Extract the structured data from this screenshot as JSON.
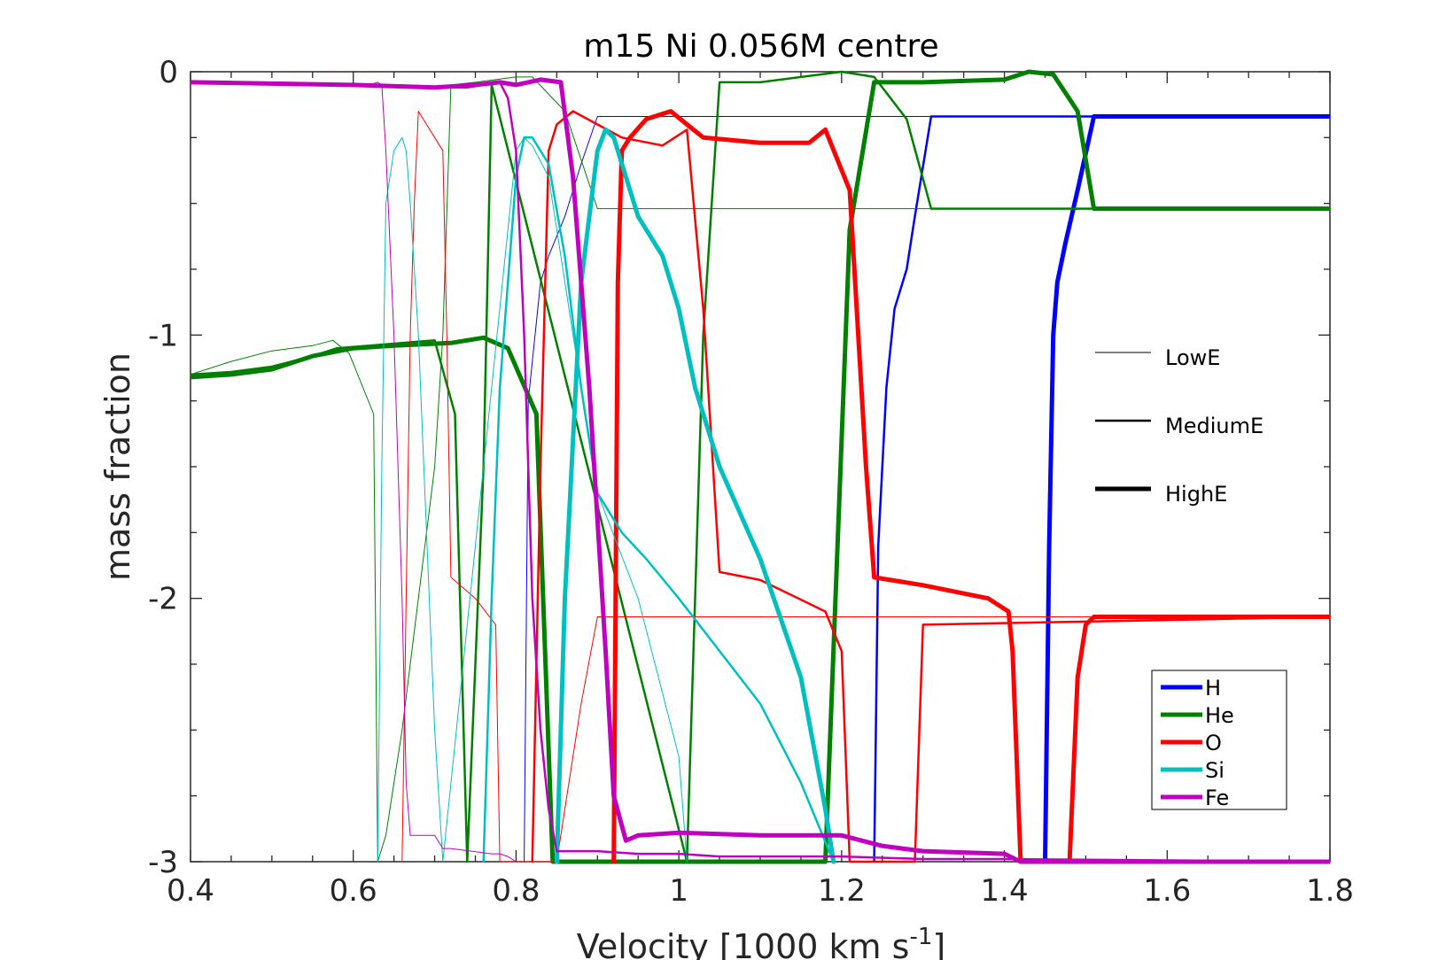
{
  "chart_data": {
    "type": "line",
    "title": "m15 Ni 0.056M centre",
    "xlabel_main": "Velocity [1000 km s",
    "xlabel_sup": "-1",
    "xlabel_end": "]",
    "ylabel": "mass fraction",
    "xlim": [
      0.4,
      1.8
    ],
    "ylim": [
      -3,
      0
    ],
    "xticks": [
      0.4,
      0.6,
      0.8,
      1,
      1.2,
      1.4,
      1.6,
      1.8
    ],
    "xtick_labels": [
      "0.4",
      "0.6",
      "0.8",
      "1",
      "1.2",
      "1.4",
      "1.6",
      "1.8"
    ],
    "yticks": [
      0,
      -1,
      -2,
      -3
    ],
    "ytick_labels": [
      "0",
      "-1",
      "-2",
      "-3"
    ],
    "grid": false,
    "element_legend": {
      "position": "bottom-right",
      "entries": [
        {
          "name": "H",
          "color": "#0000ff"
        },
        {
          "name": "He",
          "color": "#007f00"
        },
        {
          "name": "O",
          "color": "#ff0000"
        },
        {
          "name": "Si",
          "color": "#00bfbf"
        },
        {
          "name": "Fe",
          "color": "#bf00bf"
        }
      ]
    },
    "energy_legend": {
      "position": "right",
      "entries": [
        {
          "name": "LowE",
          "width": 1
        },
        {
          "name": "MediumE",
          "width": 2.5
        },
        {
          "name": "HighE",
          "width": 5
        }
      ]
    },
    "series": [
      {
        "name": "H LowE",
        "element": "H",
        "energy": "LowE",
        "color": "#0000ff",
        "width": 1,
        "x": [
          0.81,
          0.815,
          0.83,
          0.84,
          0.86,
          0.88,
          0.9,
          1.8
        ],
        "y": [
          -3,
          -1.25,
          -0.8,
          -0.7,
          -0.55,
          -0.35,
          -0.17,
          -0.17
        ]
      },
      {
        "name": "H MediumE",
        "element": "H",
        "energy": "MediumE",
        "color": "#0000ff",
        "width": 2.5,
        "x": [
          1.24,
          1.245,
          1.255,
          1.265,
          1.28,
          1.29,
          1.31,
          1.8
        ],
        "y": [
          -3,
          -1.8,
          -1.2,
          -0.9,
          -0.75,
          -0.55,
          -0.17,
          -0.17
        ]
      },
      {
        "name": "H HighE",
        "element": "H",
        "energy": "HighE",
        "color": "#0000ff",
        "width": 5,
        "x": [
          1.45,
          1.455,
          1.46,
          1.465,
          1.475,
          1.49,
          1.51,
          1.8
        ],
        "y": [
          -3,
          -1.8,
          -1.0,
          -0.8,
          -0.65,
          -0.45,
          -0.17,
          -0.17
        ]
      },
      {
        "name": "He LowE",
        "element": "He",
        "energy": "LowE",
        "color": "#007f00",
        "width": 1,
        "x": [
          0.4,
          0.45,
          0.5,
          0.55,
          0.575,
          0.595,
          0.625,
          0.63,
          0.64,
          0.66,
          0.7,
          0.71,
          0.72,
          0.75,
          0.8,
          0.82,
          0.86,
          0.9,
          1.8
        ],
        "y": [
          -1.15,
          -1.1,
          -1.06,
          -1.04,
          -1.02,
          -1.07,
          -1.3,
          -3,
          -2.9,
          -2.5,
          -1.5,
          -1.0,
          -0.05,
          -0.04,
          -0.02,
          -0.02,
          -0.15,
          -0.52,
          -0.52
        ]
      },
      {
        "name": "He MediumE",
        "element": "He",
        "energy": "MediumE",
        "color": "#007f00",
        "width": 2.5,
        "x": [
          0.4,
          0.45,
          0.5,
          0.55,
          0.58,
          0.62,
          0.7,
          0.725,
          0.74,
          0.76,
          0.77,
          1.01,
          1.03,
          1.05,
          1.1,
          1.2,
          1.24,
          1.28,
          1.31,
          1.8
        ],
        "y": [
          -1.15,
          -1.14,
          -1.12,
          -1.08,
          -1.05,
          -1.04,
          -1.02,
          -1.3,
          -3,
          -1.5,
          -0.05,
          -3,
          -1.0,
          -0.04,
          -0.04,
          -0.0,
          -0.02,
          -0.18,
          -0.52,
          -0.52
        ]
      },
      {
        "name": "He HighE",
        "element": "He",
        "energy": "HighE",
        "color": "#007f00",
        "width": 5,
        "x": [
          0.4,
          0.45,
          0.5,
          0.55,
          0.6,
          0.65,
          0.72,
          0.76,
          0.79,
          0.825,
          0.845,
          1.18,
          1.21,
          1.24,
          1.3,
          1.4,
          1.43,
          1.46,
          1.49,
          1.51,
          1.8
        ],
        "y": [
          -1.16,
          -1.15,
          -1.13,
          -1.08,
          -1.05,
          -1.04,
          -1.03,
          -1.01,
          -1.05,
          -1.3,
          -3,
          -3,
          -0.6,
          -0.04,
          -0.04,
          -0.03,
          0.0,
          -0.01,
          -0.15,
          -0.52,
          -0.52
        ]
      },
      {
        "name": "O LowE",
        "element": "O",
        "energy": "LowE",
        "color": "#ff0000",
        "width": 1,
        "x": [
          0.66,
          0.665,
          0.67,
          0.675,
          0.68,
          0.69,
          0.7,
          0.71,
          0.715,
          0.72,
          0.75,
          0.775,
          0.78,
          0.79,
          0.8,
          0.82,
          0.85,
          0.86,
          0.88,
          0.9,
          1.8
        ],
        "y": [
          -3,
          -2.0,
          -1.0,
          -0.5,
          -0.15,
          -0.2,
          -0.25,
          -0.3,
          -1.0,
          -1.92,
          -2.0,
          -2.1,
          -3,
          -3,
          -3,
          -3,
          -3,
          -2.8,
          -2.4,
          -2.07,
          -2.07
        ]
      },
      {
        "name": "O MediumE",
        "element": "O",
        "energy": "MediumE",
        "color": "#ff0000",
        "width": 2.5,
        "x": [
          0.82,
          0.83,
          0.84,
          0.85,
          0.87,
          0.9,
          0.93,
          0.98,
          1.01,
          1.03,
          1.05,
          1.1,
          1.18,
          1.2,
          1.21,
          1.24,
          1.26,
          1.29,
          1.3,
          1.8
        ],
        "y": [
          -3,
          -1.5,
          -0.3,
          -0.2,
          -0.15,
          -0.2,
          -0.25,
          -0.28,
          -0.22,
          -0.9,
          -1.9,
          -1.93,
          -2.05,
          -2.2,
          -3,
          -3,
          -3,
          -3,
          -2.1,
          -2.07
        ]
      },
      {
        "name": "O HighE",
        "element": "O",
        "energy": "HighE",
        "color": "#ff0000",
        "width": 5,
        "x": [
          0.92,
          0.925,
          0.93,
          0.94,
          0.96,
          0.99,
          1.01,
          1.03,
          1.1,
          1.16,
          1.18,
          1.21,
          1.23,
          1.24,
          1.3,
          1.38,
          1.405,
          1.41,
          1.42,
          1.48,
          1.49,
          1.5,
          1.51,
          1.8
        ],
        "y": [
          -3,
          -0.8,
          -0.3,
          -0.25,
          -0.18,
          -0.15,
          -0.2,
          -0.25,
          -0.27,
          -0.27,
          -0.22,
          -0.45,
          -1.5,
          -1.92,
          -1.95,
          -2.0,
          -2.05,
          -2.2,
          -3,
          -3,
          -2.3,
          -2.1,
          -2.07,
          -2.07
        ]
      },
      {
        "name": "Si LowE",
        "element": "Si",
        "energy": "LowE",
        "color": "#00bfbf",
        "width": 1,
        "x": [
          0.63,
          0.635,
          0.64,
          0.65,
          0.66,
          0.665,
          0.67,
          0.68,
          0.7,
          0.71,
          0.75,
          0.8,
          0.81,
          0.82,
          0.84,
          0.85,
          0.88,
          0.9,
          0.95,
          1.0,
          1.01
        ],
        "y": [
          -3,
          -1.5,
          -0.5,
          -0.3,
          -0.25,
          -0.3,
          -0.5,
          -1.0,
          -2.5,
          -3,
          -1.8,
          -0.3,
          -0.25,
          -0.28,
          -0.4,
          -0.6,
          -1.2,
          -1.6,
          -2.0,
          -2.6,
          -3
        ]
      },
      {
        "name": "Si MediumE",
        "element": "Si",
        "energy": "MediumE",
        "color": "#00bfbf",
        "width": 2.5,
        "x": [
          0.76,
          0.77,
          0.78,
          0.8,
          0.81,
          0.82,
          0.84,
          0.86,
          0.88,
          0.9,
          0.93,
          0.96,
          1.0,
          1.05,
          1.1,
          1.15,
          1.19
        ],
        "y": [
          -3,
          -2.0,
          -1.2,
          -0.4,
          -0.25,
          -0.25,
          -0.35,
          -0.7,
          -1.2,
          -1.6,
          -1.75,
          -1.85,
          -2.0,
          -2.2,
          -2.4,
          -2.7,
          -3
        ]
      },
      {
        "name": "Si HighE",
        "element": "Si",
        "energy": "HighE",
        "color": "#00bfbf",
        "width": 5,
        "x": [
          0.85,
          0.86,
          0.88,
          0.9,
          0.91,
          0.92,
          0.95,
          0.98,
          1.0,
          1.02,
          1.05,
          1.1,
          1.15,
          1.18,
          1.19
        ],
        "y": [
          -3,
          -2.0,
          -0.8,
          -0.3,
          -0.22,
          -0.25,
          -0.55,
          -0.7,
          -0.9,
          -1.2,
          -1.5,
          -1.85,
          -2.3,
          -2.8,
          -3
        ]
      },
      {
        "name": "Fe LowE",
        "element": "Fe",
        "energy": "LowE",
        "color": "#bf00bf",
        "width": 1,
        "x": [
          0.4,
          0.6,
          0.62,
          0.63,
          0.635,
          0.64,
          0.65,
          0.66,
          0.665,
          0.67,
          0.7,
          0.71,
          0.72,
          0.77,
          0.78,
          0.79,
          0.8
        ],
        "y": [
          -0.04,
          -0.05,
          -0.05,
          -0.04,
          -0.05,
          -0.3,
          -1.0,
          -2.0,
          -2.7,
          -2.9,
          -2.9,
          -2.95,
          -2.95,
          -2.97,
          -2.97,
          -2.98,
          -3
        ]
      },
      {
        "name": "Fe MediumE",
        "element": "Fe",
        "energy": "MediumE",
        "color": "#bf00bf",
        "width": 2.5,
        "x": [
          0.4,
          0.7,
          0.74,
          0.76,
          0.78,
          0.79,
          0.8,
          0.81,
          0.82,
          0.83,
          0.84,
          0.85,
          0.9,
          0.95,
          1.0,
          1.05,
          1.2,
          1.3,
          1.4,
          1.8
        ],
        "y": [
          -0.04,
          -0.06,
          -0.06,
          -0.05,
          -0.04,
          -0.1,
          -0.3,
          -1.0,
          -2.0,
          -2.5,
          -2.8,
          -2.96,
          -2.96,
          -2.97,
          -2.97,
          -2.98,
          -2.98,
          -2.99,
          -2.99,
          -3
        ]
      },
      {
        "name": "Fe HighE",
        "element": "Fe",
        "energy": "HighE",
        "color": "#bf00bf",
        "width": 5,
        "x": [
          0.4,
          0.6,
          0.7,
          0.75,
          0.78,
          0.8,
          0.83,
          0.855,
          0.87,
          0.89,
          0.91,
          0.92,
          0.935,
          0.95,
          1.0,
          1.1,
          1.2,
          1.25,
          1.3,
          1.4,
          1.42,
          1.5,
          1.8
        ],
        "y": [
          -0.04,
          -0.05,
          -0.06,
          -0.05,
          -0.04,
          -0.05,
          -0.03,
          -0.04,
          -0.4,
          -1.2,
          -2.2,
          -2.75,
          -2.92,
          -2.9,
          -2.89,
          -2.9,
          -2.9,
          -2.94,
          -2.96,
          -2.97,
          -3,
          -3,
          -3
        ]
      }
    ]
  }
}
